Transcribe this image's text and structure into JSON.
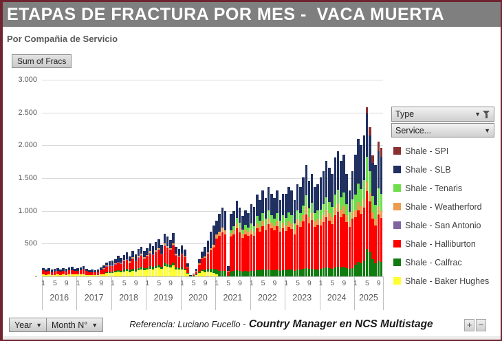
{
  "window": {
    "title": "ETAPAS DE FRACTURA POR MES -  VACA MUERTA",
    "subtitle": "Por Compañia de Servicio"
  },
  "pivot": {
    "value_button": "Sum of Fracs",
    "type_button": "Type",
    "service_button": "Service...",
    "year_button": "Year",
    "month_button": "Month N°",
    "zoom_in": "+",
    "zoom_out": "−"
  },
  "footer": {
    "reference_label": "Referencia:  Luciano Fucello -",
    "reference_role": "Country Manager en NCS Multistage"
  },
  "legend_order_top_to_bottom": [
    "spi",
    "slb",
    "tenaris",
    "weatherford",
    "sanantonio",
    "halliburton",
    "calfrac",
    "baker"
  ],
  "chart_data": {
    "type": "bar",
    "variant": "stacked-monthly",
    "title": "ETAPAS DE FRACTURA POR MES - VACA MUERTA",
    "value_field": "Sum of Fracs",
    "ylim": [
      0,
      3000
    ],
    "y_ticks": [
      "3.000",
      "2.500",
      "2.000",
      "1.500",
      "1.000",
      "500",
      "-"
    ],
    "grid": true,
    "legend_position": "right",
    "month_tick_positions": [
      0,
      4,
      8
    ],
    "month_tick_labels": [
      "1",
      "5",
      "9"
    ],
    "years": [
      {
        "year": "2016",
        "months": 12
      },
      {
        "year": "2017",
        "months": 12
      },
      {
        "year": "2018",
        "months": 12
      },
      {
        "year": "2019",
        "months": 12
      },
      {
        "year": "2020",
        "months": 12
      },
      {
        "year": "2021",
        "months": 12
      },
      {
        "year": "2022",
        "months": 12
      },
      {
        "year": "2023",
        "months": 12
      },
      {
        "year": "2024",
        "months": 12
      },
      {
        "year": "2025",
        "months": 10
      }
    ],
    "series": [
      {
        "key": "baker",
        "name": "Shale - Baker Hughes",
        "color": "#FFFF33",
        "values": [
          30,
          25,
          28,
          22,
          26,
          28,
          24,
          28,
          26,
          30,
          32,
          27,
          28,
          30,
          34,
          26,
          20,
          22,
          18,
          24,
          30,
          36,
          48,
          52,
          55,
          60,
          72,
          64,
          76,
          84,
          68,
          88,
          78,
          96,
          104,
          90,
          100,
          120,
          110,
          125,
          135,
          115,
          160,
          150,
          140,
          165,
          110,
          100,
          110,
          95,
          45,
          5,
          10,
          25,
          55,
          80,
          60,
          70,
          60,
          50,
          30,
          0,
          0,
          0,
          0,
          0,
          0,
          0,
          0,
          0,
          0,
          0,
          0,
          0,
          0,
          0,
          0,
          0,
          0,
          0,
          0,
          0,
          0,
          0,
          0,
          0,
          0,
          0,
          0,
          0,
          0,
          0,
          0,
          0,
          0,
          0,
          0,
          0,
          0,
          0,
          0,
          0,
          0,
          0,
          0,
          0,
          0,
          0,
          0,
          0,
          0,
          0,
          0,
          0,
          0,
          0,
          0,
          0
        ]
      },
      {
        "key": "calfrac",
        "name": "Shale - Calfrac",
        "color": "#107C10",
        "values": [
          0,
          0,
          0,
          0,
          0,
          0,
          0,
          0,
          0,
          0,
          0,
          0,
          0,
          0,
          0,
          0,
          0,
          0,
          0,
          0,
          0,
          0,
          10,
          10,
          18,
          20,
          25,
          22,
          28,
          30,
          24,
          32,
          28,
          34,
          38,
          32,
          30,
          35,
          32,
          36,
          40,
          34,
          45,
          42,
          38,
          45,
          30,
          28,
          30,
          25,
          12,
          2,
          3,
          8,
          18,
          28,
          35,
          45,
          55,
          65,
          70,
          80,
          85,
          80,
          10,
          75,
          80,
          95,
          85,
          75,
          80,
          78,
          85,
          80,
          95,
          90,
          100,
          92,
          105,
          95,
          92,
          100,
          88,
          95,
          95,
          105,
          100,
          88,
          108,
          105,
          115,
          130,
          112,
          120,
          105,
          108,
          115,
          125,
          135,
          128,
          120,
          140,
          148,
          135,
          142,
          125,
          112,
          130,
          180,
          220,
          200,
          240,
          420,
          380,
          260,
          200,
          240,
          220
        ]
      },
      {
        "key": "halliburton",
        "name": "Shale - Halliburton",
        "color": "#FE0000",
        "values": [
          60,
          50,
          57,
          45,
          52,
          57,
          48,
          57,
          52,
          60,
          65,
          54,
          55,
          62,
          68,
          53,
          42,
          46,
          40,
          48,
          60,
          72,
          95,
          105,
          92,
          100,
          118,
          106,
          125,
          138,
          114,
          146,
          128,
          158,
          172,
          148,
          175,
          200,
          185,
          210,
          230,
          195,
          265,
          245,
          225,
          265,
          185,
          170,
          195,
          170,
          85,
          10,
          20,
          50,
          110,
          160,
          190,
          230,
          285,
          330,
          480,
          540,
          590,
          560,
          60,
          530,
          560,
          640,
          590,
          515,
          565,
          540,
          560,
          540,
          635,
          590,
          665,
          610,
          690,
          640,
          610,
          665,
          590,
          640,
          600,
          650,
          625,
          555,
          675,
          650,
          720,
          810,
          695,
          745,
          650,
          675,
          660,
          705,
          770,
          725,
          680,
          790,
          835,
          770,
          815,
          705,
          640,
          750,
          720,
          790,
          755,
          810,
          880,
          760,
          620,
          580,
          700,
          670
        ]
      },
      {
        "key": "sanantonio",
        "name": "Shale - San Antonio",
        "color": "#8064A2",
        "values": [
          0,
          0,
          0,
          0,
          0,
          0,
          0,
          0,
          0,
          0,
          0,
          0,
          0,
          0,
          0,
          0,
          0,
          0,
          0,
          0,
          0,
          5,
          5,
          5,
          8,
          8,
          8,
          8,
          8,
          8,
          8,
          8,
          8,
          8,
          8,
          8,
          5,
          5,
          5,
          5,
          5,
          5,
          5,
          5,
          5,
          5,
          5,
          5,
          0,
          0,
          0,
          0,
          0,
          0,
          0,
          0,
          0,
          0,
          0,
          0,
          0,
          0,
          0,
          0,
          0,
          0,
          0,
          0,
          0,
          0,
          0,
          0,
          0,
          0,
          0,
          0,
          0,
          0,
          0,
          0,
          0,
          0,
          0,
          0,
          0,
          0,
          0,
          0,
          0,
          0,
          0,
          0,
          0,
          0,
          0,
          0,
          0,
          0,
          0,
          0,
          0,
          0,
          0,
          0,
          0,
          0,
          0,
          0,
          0,
          0,
          0,
          0,
          0,
          0,
          0,
          0,
          0,
          0
        ]
      },
      {
        "key": "weatherford",
        "name": "Shale - Weatherford",
        "color": "#ED9B4F",
        "values": [
          0,
          0,
          0,
          0,
          0,
          0,
          0,
          0,
          0,
          0,
          0,
          0,
          0,
          0,
          0,
          0,
          0,
          0,
          0,
          0,
          0,
          15,
          10,
          0,
          0,
          10,
          0,
          12,
          15,
          0,
          14,
          16,
          0,
          18,
          20,
          15,
          15,
          25,
          0,
          18,
          20,
          0,
          25,
          22,
          18,
          28,
          15,
          12,
          12,
          10,
          5,
          0,
          2,
          5,
          12,
          18,
          20,
          25,
          30,
          35,
          55,
          65,
          70,
          65,
          10,
          60,
          65,
          75,
          70,
          60,
          65,
          62,
          70,
          65,
          80,
          72,
          85,
          75,
          88,
          80,
          75,
          85,
          72,
          80,
          78,
          88,
          82,
          70,
          90,
          85,
          98,
          115,
          92,
          100,
          85,
          88,
          95,
          105,
          115,
          108,
          100,
          118,
          128,
          115,
          122,
          105,
          92,
          110,
          110,
          125,
          115,
          130,
          150,
          130,
          100,
          90,
          120,
          110
        ]
      },
      {
        "key": "tenaris",
        "name": "Shale - Tenaris",
        "color": "#6FDE4C",
        "values": [
          0,
          0,
          0,
          0,
          0,
          0,
          0,
          0,
          0,
          0,
          0,
          0,
          0,
          0,
          0,
          0,
          0,
          0,
          0,
          0,
          0,
          0,
          0,
          0,
          0,
          0,
          0,
          0,
          0,
          0,
          0,
          0,
          0,
          0,
          0,
          0,
          0,
          0,
          0,
          0,
          0,
          0,
          0,
          0,
          0,
          0,
          0,
          0,
          0,
          0,
          0,
          0,
          0,
          0,
          0,
          0,
          0,
          0,
          0,
          0,
          0,
          0,
          0,
          0,
          0,
          40,
          60,
          85,
          75,
          65,
          75,
          70,
          95,
          85,
          110,
          98,
          120,
          105,
          127,
          115,
          105,
          120,
          100,
          115,
          117,
          132,
          123,
          97,
          137,
          130,
          152,
          185,
          141,
          155,
          130,
          139,
          150,
          165,
          190,
          174,
          155,
          197,
          214,
          190,
          206,
          165,
          141,
          180,
          240,
          280,
          260,
          290,
          380,
          330,
          250,
          220,
          280,
          260
        ]
      },
      {
        "key": "slb",
        "name": "Shale - SLB",
        "color": "#1F3061",
        "values": [
          40,
          35,
          40,
          33,
          37,
          40,
          33,
          40,
          37,
          45,
          48,
          39,
          42,
          48,
          53,
          41,
          33,
          37,
          32,
          38,
          45,
          37,
          47,
          63,
          67,
          67,
          87,
          68,
          78,
          105,
          72,
          95,
          98,
          106,
          113,
          97,
          105,
          115,
          128,
          126,
          135,
          131,
          155,
          141,
          134,
          152,
          110,
          105,
          123,
          110,
          53,
          8,
          10,
          32,
          65,
          94,
          145,
          180,
          250,
          300,
          215,
          265,
          305,
          295,
          80,
          245,
          235,
          255,
          230,
          205,
          225,
          210,
          290,
          290,
          330,
          310,
          340,
          318,
          350,
          330,
          318,
          340,
          310,
          330,
          370,
          385,
          380,
          350,
          400,
          390,
          425,
          460,
          420,
          440,
          390,
          400,
          490,
          510,
          550,
          525,
          505,
          565,
          585,
          550,
          575,
          460,
          325,
          440,
          610,
          685,
          670,
          680,
          660,
          550,
          500,
          610,
          570,
          570
        ]
      },
      {
        "key": "spi",
        "name": "Shale - SPI",
        "color": "#8B3030",
        "values": [
          0,
          0,
          0,
          0,
          0,
          0,
          0,
          0,
          0,
          0,
          0,
          0,
          0,
          0,
          0,
          0,
          0,
          0,
          0,
          0,
          0,
          0,
          0,
          0,
          0,
          0,
          0,
          0,
          0,
          0,
          0,
          0,
          0,
          0,
          0,
          0,
          0,
          0,
          0,
          0,
          0,
          0,
          0,
          0,
          0,
          0,
          0,
          0,
          0,
          0,
          0,
          0,
          0,
          0,
          0,
          0,
          0,
          0,
          0,
          0,
          0,
          0,
          0,
          0,
          0,
          0,
          0,
          0,
          0,
          0,
          0,
          0,
          0,
          0,
          0,
          0,
          0,
          0,
          0,
          0,
          0,
          0,
          0,
          0,
          0,
          0,
          0,
          0,
          0,
          0,
          0,
          0,
          0,
          0,
          0,
          0,
          0,
          0,
          0,
          0,
          0,
          0,
          0,
          0,
          0,
          0,
          0,
          0,
          0,
          0,
          0,
          0,
          90,
          130,
          120,
          0,
          150,
          130
        ]
      }
    ]
  }
}
